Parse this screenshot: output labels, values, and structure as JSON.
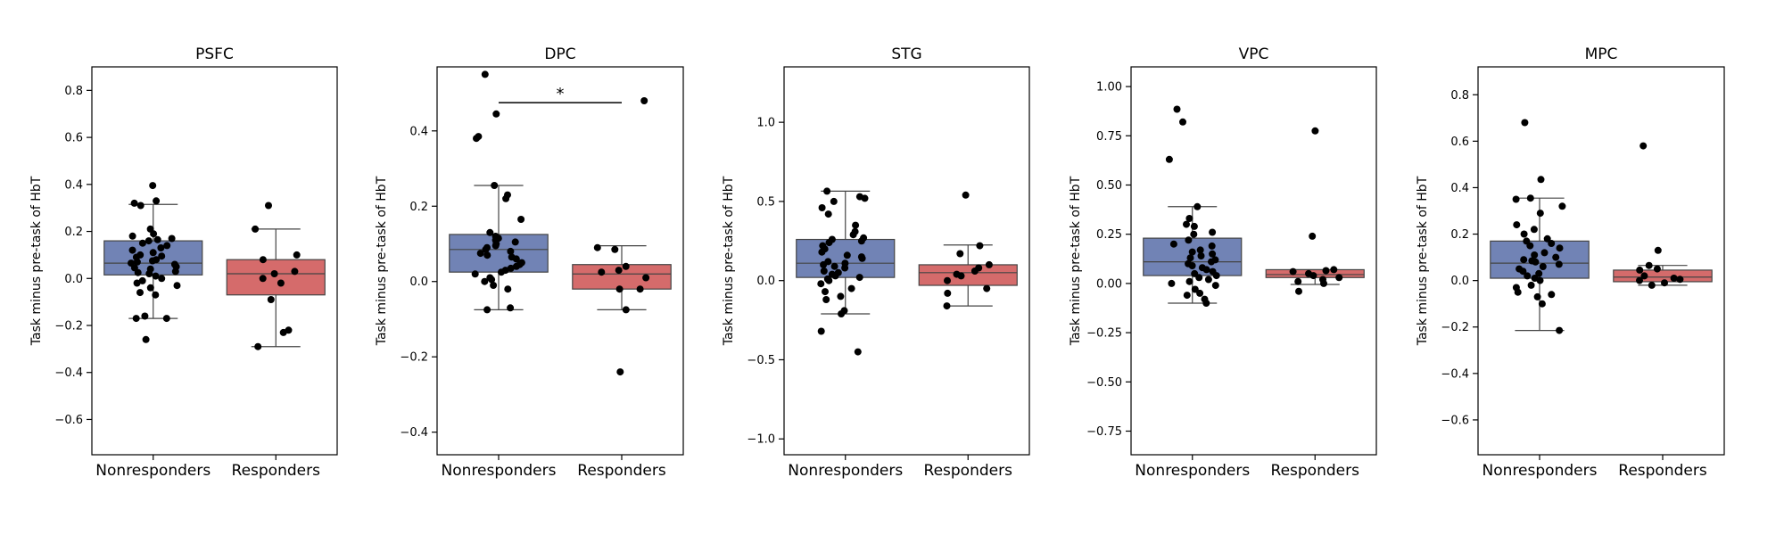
{
  "figure": {
    "background": "#ffffff"
  },
  "colors": {
    "nonresponders": "#7183b5",
    "responders": "#d56b6b",
    "points": "#000000",
    "frame": "#000000",
    "whisker": "#444444"
  },
  "chart_data": [
    {
      "type": "box",
      "title": "PSFC",
      "ylabel": "Task minus pre-task of HbT",
      "ylim": [
        -0.75,
        0.9
      ],
      "yticks": [
        -0.6,
        -0.4,
        -0.2,
        0.0,
        0.2,
        0.4,
        0.6,
        0.8
      ],
      "ytick_labels": [
        "−0.6",
        "−0.4",
        "−0.2",
        "0.0",
        "0.2",
        "0.4",
        "0.6",
        "0.8"
      ],
      "categories": [
        "Nonresponders",
        "Responders"
      ],
      "boxes": [
        {
          "whislo": -0.17,
          "q1": 0.015,
          "med": 0.065,
          "q3": 0.16,
          "whishi": 0.315
        },
        {
          "whislo": -0.29,
          "q1": -0.07,
          "med": 0.02,
          "q3": 0.08,
          "whishi": 0.21
        }
      ],
      "points": [
        [
          0.395,
          0.33,
          0.32,
          0.31,
          0.21,
          0.19,
          0.18,
          0.17,
          0.165,
          0.16,
          0.15,
          0.14,
          0.13,
          0.12,
          0.11,
          0.1,
          0.095,
          0.09,
          0.08,
          0.075,
          0.07,
          0.065,
          0.06,
          0.05,
          0.045,
          0.04,
          0.03,
          0.025,
          0.02,
          0.01,
          0.0,
          -0.01,
          -0.02,
          -0.03,
          -0.04,
          -0.06,
          -0.07,
          -0.16,
          -0.17,
          -0.17,
          -0.26
        ],
        [
          0.31,
          0.21,
          0.1,
          0.08,
          0.03,
          0.02,
          0.0,
          -0.02,
          -0.09,
          -0.22,
          -0.23,
          -0.29
        ]
      ],
      "significance": null
    },
    {
      "type": "box",
      "title": "DPC",
      "ylabel": "Task minus pre-task of HbT",
      "ylim": [
        -0.46,
        0.57
      ],
      "yticks": [
        -0.4,
        -0.2,
        0.0,
        0.2,
        0.4
      ],
      "ytick_labels": [
        "−0.4",
        "−0.2",
        "0.0",
        "0.2",
        "0.4"
      ],
      "categories": [
        "Nonresponders",
        "Responders"
      ],
      "boxes": [
        {
          "whislo": -0.075,
          "q1": 0.025,
          "med": 0.085,
          "q3": 0.125,
          "whishi": 0.255
        },
        {
          "whislo": -0.075,
          "q1": -0.02,
          "med": 0.02,
          "q3": 0.045,
          "whishi": 0.095
        }
      ],
      "points": [
        [
          0.55,
          0.445,
          0.385,
          0.38,
          0.255,
          0.23,
          0.22,
          0.165,
          0.13,
          0.12,
          0.115,
          0.11,
          0.105,
          0.1,
          0.095,
          0.09,
          0.085,
          0.08,
          0.075,
          0.07,
          0.065,
          0.06,
          0.05,
          0.045,
          0.04,
          0.035,
          0.03,
          0.025,
          0.02,
          0.01,
          0.005,
          0.0,
          -0.01,
          -0.02,
          -0.07,
          -0.075
        ],
        [
          0.48,
          0.09,
          0.085,
          0.04,
          0.03,
          0.025,
          0.01,
          -0.02,
          -0.02,
          -0.075,
          -0.24
        ]
      ],
      "significance": {
        "label": "*",
        "y": 0.475
      }
    },
    {
      "type": "box",
      "title": "STG",
      "ylabel": "Task minus pre-task of HbT",
      "ylim": [
        -1.1,
        1.35
      ],
      "yticks": [
        -1.0,
        -0.5,
        0.0,
        0.5,
        1.0
      ],
      "ytick_labels": [
        "−1.0",
        "−0.5",
        "0.0",
        "0.5",
        "1.0"
      ],
      "categories": [
        "Nonresponders",
        "Responders"
      ],
      "boxes": [
        {
          "whislo": -0.21,
          "q1": 0.02,
          "med": 0.11,
          "q3": 0.26,
          "whishi": 0.565
        },
        {
          "whislo": -0.16,
          "q1": -0.03,
          "med": 0.05,
          "q3": 0.1,
          "whishi": 0.225
        }
      ],
      "points": [
        [
          0.565,
          0.53,
          0.52,
          0.5,
          0.46,
          0.42,
          0.35,
          0.31,
          0.29,
          0.27,
          0.26,
          0.25,
          0.24,
          0.22,
          0.2,
          0.18,
          0.16,
          0.15,
          0.14,
          0.12,
          0.11,
          0.1,
          0.09,
          0.08,
          0.06,
          0.05,
          0.04,
          0.03,
          0.02,
          0.01,
          0.0,
          -0.02,
          -0.05,
          -0.07,
          -0.1,
          -0.12,
          -0.19,
          -0.21,
          -0.32,
          -0.45
        ],
        [
          0.54,
          0.22,
          0.17,
          0.1,
          0.08,
          0.06,
          0.04,
          0.03,
          0.0,
          -0.05,
          -0.08,
          -0.16
        ]
      ],
      "significance": null
    },
    {
      "type": "box",
      "title": "VPC",
      "ylabel": "Task minus pre-task of HbT",
      "ylim": [
        -0.87,
        1.1
      ],
      "yticks": [
        -0.75,
        -0.5,
        -0.25,
        0.0,
        0.25,
        0.5,
        0.75,
        1.0
      ],
      "ytick_labels": [
        "−0.75",
        "−0.50",
        "−0.25",
        "0.00",
        "0.25",
        "0.50",
        "0.75",
        "1.00"
      ],
      "categories": [
        "Nonresponders",
        "Responders"
      ],
      "boxes": [
        {
          "whislo": -0.1,
          "q1": 0.04,
          "med": 0.11,
          "q3": 0.23,
          "whishi": 0.39
        },
        {
          "whislo": -0.005,
          "q1": 0.03,
          "med": 0.045,
          "q3": 0.07,
          "whishi": 0.07
        }
      ],
      "points": [
        [
          0.885,
          0.82,
          0.63,
          0.39,
          0.33,
          0.3,
          0.29,
          0.26,
          0.25,
          0.22,
          0.2,
          0.19,
          0.17,
          0.16,
          0.15,
          0.14,
          0.13,
          0.12,
          0.11,
          0.1,
          0.09,
          0.08,
          0.07,
          0.06,
          0.05,
          0.04,
          0.03,
          0.02,
          0.01,
          0.0,
          -0.01,
          -0.03,
          -0.05,
          -0.06,
          -0.08,
          -0.1
        ],
        [
          0.775,
          0.24,
          0.07,
          0.065,
          0.06,
          0.05,
          0.04,
          0.03,
          0.02,
          0.01,
          0.0,
          -0.04
        ]
      ],
      "significance": null
    },
    {
      "type": "box",
      "title": "MPC",
      "ylabel": "Task minus pre-task of HbT",
      "ylim": [
        -0.75,
        0.92
      ],
      "yticks": [
        -0.6,
        -0.4,
        -0.2,
        0.0,
        0.2,
        0.4,
        0.6,
        0.8
      ],
      "ytick_labels": [
        "−0.6",
        "−0.4",
        "−0.2",
        "0.0",
        "0.2",
        "0.4",
        "0.6",
        "0.8"
      ],
      "categories": [
        "Nonresponders",
        "Responders"
      ],
      "boxes": [
        {
          "whislo": -0.215,
          "q1": 0.01,
          "med": 0.075,
          "q3": 0.17,
          "whishi": 0.355
        },
        {
          "whislo": -0.02,
          "q1": -0.005,
          "med": 0.015,
          "q3": 0.045,
          "whishi": 0.065
        }
      ],
      "points": [
        [
          0.68,
          0.435,
          0.355,
          0.35,
          0.32,
          0.29,
          0.24,
          0.22,
          0.2,
          0.18,
          0.17,
          0.16,
          0.15,
          0.14,
          0.12,
          0.11,
          0.1,
          0.09,
          0.085,
          0.08,
          0.07,
          0.06,
          0.05,
          0.04,
          0.03,
          0.02,
          0.01,
          0.0,
          -0.02,
          -0.03,
          -0.05,
          -0.06,
          -0.07,
          -0.1,
          -0.215
        ],
        [
          0.58,
          0.13,
          0.065,
          0.05,
          0.045,
          0.02,
          0.01,
          0.005,
          0.0,
          -0.01,
          -0.02
        ]
      ],
      "significance": null
    }
  ]
}
